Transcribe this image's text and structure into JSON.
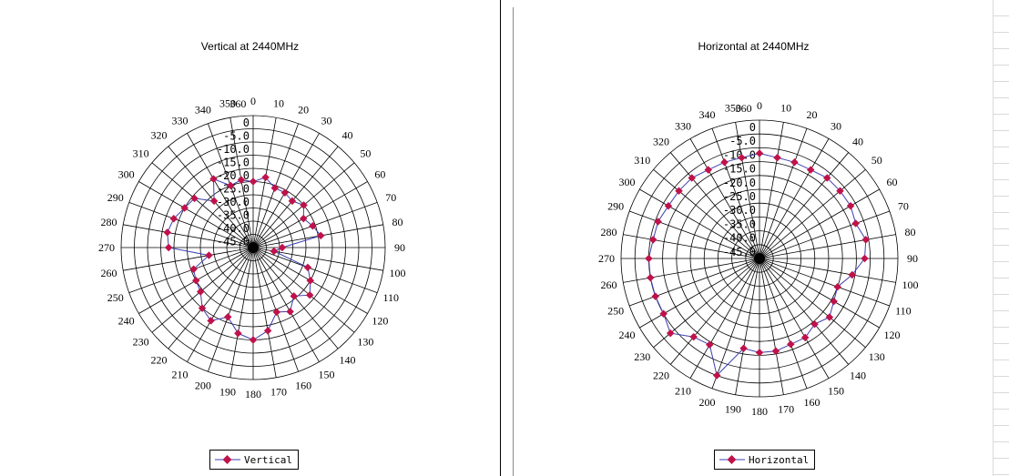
{
  "chart_data": [
    {
      "type": "polar",
      "title": "Vertical at 2440MHz",
      "angle_labels": [
        "0",
        "10",
        "20",
        "30",
        "40",
        "50",
        "60",
        "70",
        "80",
        "90",
        "100",
        "110",
        "120",
        "130",
        "140",
        "150",
        "160",
        "170",
        "180",
        "190",
        "200",
        "210",
        "220",
        "230",
        "240",
        "250",
        "260",
        "270",
        "280",
        "290",
        "300",
        "310",
        "320",
        "330",
        "340",
        "350",
        "360"
      ],
      "radial_labels": [
        "0",
        "-5.0",
        "-10.0",
        "-15.0",
        "-20.0",
        "-25.0",
        "-30.0",
        "-35.0",
        "-40.0",
        "-45.0"
      ],
      "radial_range": [
        -50,
        0
      ],
      "grid": true,
      "legend_position": "bottom",
      "series": [
        {
          "name": "Vertical",
          "color": "#3b3fb0",
          "marker_color": "#c0124a",
          "angles": [
            0,
            10,
            20,
            30,
            40,
            50,
            60,
            70,
            80,
            90,
            100,
            110,
            120,
            130,
            140,
            150,
            160,
            170,
            180,
            190,
            200,
            210,
            220,
            230,
            240,
            250,
            260,
            270,
            280,
            290,
            300,
            310,
            320,
            330,
            340,
            350
          ],
          "values": [
            -25,
            -23,
            -26,
            -26,
            -27,
            -25,
            -28,
            -26,
            -24,
            -39,
            -42,
            -28,
            -25,
            -22,
            -26,
            -22,
            -24,
            -18,
            -15,
            -17,
            -22,
            -18,
            -20,
            -24,
            -25,
            -26,
            -33,
            -18,
            -17,
            -18,
            -20,
            -21,
            -27,
            -20,
            -25,
            -24
          ]
        }
      ]
    },
    {
      "type": "polar",
      "title": "Horizontal at 2440MHz",
      "angle_labels": [
        "0",
        "10",
        "20",
        "30",
        "40",
        "50",
        "60",
        "70",
        "80",
        "90",
        "100",
        "110",
        "120",
        "130",
        "140",
        "150",
        "160",
        "170",
        "180",
        "190",
        "200",
        "210",
        "220",
        "230",
        "240",
        "250",
        "260",
        "270",
        "280",
        "290",
        "300",
        "310",
        "320",
        "330",
        "340",
        "350",
        "360"
      ],
      "radial_labels": [
        "0",
        "-5.0",
        "-10.0",
        "-15.0",
        "-20.0",
        "-25.0",
        "-30.0",
        "-35.0",
        "-40.0",
        "-45.0"
      ],
      "radial_range": [
        -50,
        0
      ],
      "grid": true,
      "legend_position": "bottom",
      "series": [
        {
          "name": "Horizontal",
          "color": "#3b3fb0",
          "marker_color": "#c0124a",
          "angles": [
            0,
            10,
            20,
            30,
            40,
            50,
            60,
            70,
            80,
            90,
            100,
            110,
            120,
            130,
            140,
            150,
            160,
            170,
            180,
            190,
            200,
            210,
            220,
            230,
            240,
            250,
            260,
            270,
            280,
            290,
            300,
            310,
            320,
            330,
            340,
            350
          ],
          "values": [
            -12,
            -13,
            -13,
            -13,
            -12,
            -12,
            -12,
            -13,
            -11,
            -12,
            -16,
            -20,
            -19,
            -17,
            -19,
            -17,
            -17,
            -16,
            -16,
            -17,
            -5,
            -14,
            -13,
            -8,
            -10,
            -10,
            -10,
            -10,
            -11,
            -11,
            -12,
            -12,
            -12,
            -13,
            -13,
            -13
          ]
        }
      ]
    }
  ]
}
